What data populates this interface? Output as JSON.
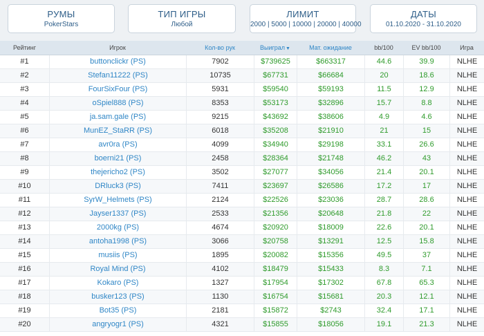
{
  "filters": {
    "rooms": {
      "title": "РУМЫ",
      "value": "PokerStars"
    },
    "game_type": {
      "title": "ТИП ИГРЫ",
      "value": "Любой"
    },
    "limit": {
      "title": "ЛИМИТ",
      "value": "2000 | 5000 | 10000 | 20000 | 40000"
    },
    "dates": {
      "title": "ДАТЫ",
      "value": "01.10.2020 - 31.10.2020"
    }
  },
  "table": {
    "headers": {
      "rank": "Рейтинг",
      "player": "Игрок",
      "hands": "Кол-во рук",
      "won": "Выиграл",
      "ev": "Мат. ожидание",
      "bb100": "bb/100",
      "evbb100": "EV bb/100",
      "game": "Игра"
    },
    "sort_arrow": "▼",
    "rows": [
      {
        "rank": "#1",
        "player": "buttonclickr (PS)",
        "hands": "7902",
        "won": "$739625",
        "ev": "$663317",
        "bb": "44.6",
        "evbb": "39.9",
        "game": "NLHE"
      },
      {
        "rank": "#2",
        "player": "Stefan11222 (PS)",
        "hands": "10735",
        "won": "$67731",
        "ev": "$66684",
        "bb": "20",
        "evbb": "18.6",
        "game": "NLHE"
      },
      {
        "rank": "#3",
        "player": "FourSixFour (PS)",
        "hands": "5931",
        "won": "$59540",
        "ev": "$59193",
        "bb": "11.5",
        "evbb": "12.9",
        "game": "NLHE"
      },
      {
        "rank": "#4",
        "player": "oSpiel888 (PS)",
        "hands": "8353",
        "won": "$53173",
        "ev": "$32896",
        "bb": "15.7",
        "evbb": "8.8",
        "game": "NLHE"
      },
      {
        "rank": "#5",
        "player": "ja.sam.gale (PS)",
        "hands": "9215",
        "won": "$43692",
        "ev": "$38606",
        "bb": "4.9",
        "evbb": "4.6",
        "game": "NLHE"
      },
      {
        "rank": "#6",
        "player": "MunEZ_StaRR (PS)",
        "hands": "6018",
        "won": "$35208",
        "ev": "$21910",
        "bb": "21",
        "evbb": "15",
        "game": "NLHE"
      },
      {
        "rank": "#7",
        "player": "avr0ra (PS)",
        "hands": "4099",
        "won": "$34940",
        "ev": "$29198",
        "bb": "33.1",
        "evbb": "26.6",
        "game": "NLHE"
      },
      {
        "rank": "#8",
        "player": "boerni21 (PS)",
        "hands": "2458",
        "won": "$28364",
        "ev": "$21748",
        "bb": "46.2",
        "evbb": "43",
        "game": "NLHE"
      },
      {
        "rank": "#9",
        "player": "thejericho2 (PS)",
        "hands": "3502",
        "won": "$27077",
        "ev": "$34056",
        "bb": "21.4",
        "evbb": "20.1",
        "game": "NLHE"
      },
      {
        "rank": "#10",
        "player": "DRluck3 (PS)",
        "hands": "7411",
        "won": "$23697",
        "ev": "$26586",
        "bb": "17.2",
        "evbb": "17",
        "game": "NLHE"
      },
      {
        "rank": "#11",
        "player": "SyrW_Helmets (PS)",
        "hands": "2124",
        "won": "$22526",
        "ev": "$23036",
        "bb": "28.7",
        "evbb": "28.6",
        "game": "NLHE"
      },
      {
        "rank": "#12",
        "player": "Jayser1337 (PS)",
        "hands": "2533",
        "won": "$21356",
        "ev": "$20648",
        "bb": "21.8",
        "evbb": "22",
        "game": "NLHE"
      },
      {
        "rank": "#13",
        "player": "2000kg (PS)",
        "hands": "4674",
        "won": "$20920",
        "ev": "$18009",
        "bb": "22.6",
        "evbb": "20.1",
        "game": "NLHE"
      },
      {
        "rank": "#14",
        "player": "antoha1998 (PS)",
        "hands": "3066",
        "won": "$20758",
        "ev": "$13291",
        "bb": "12.5",
        "evbb": "15.8",
        "game": "NLHE"
      },
      {
        "rank": "#15",
        "player": "musiis (PS)",
        "hands": "1895",
        "won": "$20082",
        "ev": "$15356",
        "bb": "49.5",
        "evbb": "37",
        "game": "NLHE"
      },
      {
        "rank": "#16",
        "player": "Royal Mind (PS)",
        "hands": "4102",
        "won": "$18479",
        "ev": "$15433",
        "bb": "8.3",
        "evbb": "7.1",
        "game": "NLHE"
      },
      {
        "rank": "#17",
        "player": "Kokaro (PS)",
        "hands": "1327",
        "won": "$17954",
        "ev": "$17302",
        "bb": "67.8",
        "evbb": "65.3",
        "game": "NLHE"
      },
      {
        "rank": "#18",
        "player": "busker123 (PS)",
        "hands": "1130",
        "won": "$16754",
        "ev": "$15681",
        "bb": "20.3",
        "evbb": "12.1",
        "game": "NLHE"
      },
      {
        "rank": "#19",
        "player": "Bot35 (PS)",
        "hands": "2181",
        "won": "$15872",
        "ev": "$2743",
        "bb": "32.4",
        "evbb": "17.1",
        "game": "NLHE"
      },
      {
        "rank": "#20",
        "player": "angryogr1 (PS)",
        "hands": "4321",
        "won": "$15855",
        "ev": "$18056",
        "bb": "19.1",
        "evbb": "21.3",
        "game": "NLHE"
      }
    ]
  }
}
